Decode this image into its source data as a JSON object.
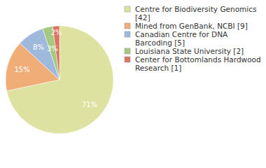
{
  "chart_data": {
    "type": "pie",
    "categories": [
      "Centre for Biodiversity Genomics [42]",
      "Mined from GenBank, NCBI [9]",
      "Canadian Centre for DNA Barcoding [5]",
      "Louisiana State University [2]",
      "Center for Bottomlands Hardwood Research [1]"
    ],
    "values": [
      71,
      15,
      8,
      3,
      2
    ],
    "value_labels": [
      "71%",
      "15%",
      "8%",
      "3%",
      "2%"
    ],
    "colors": [
      "#dde2a0",
      "#f0ad78",
      "#9fb9dd",
      "#a5c97e",
      "#de7363"
    ],
    "data_labels": true,
    "legend": "right"
  }
}
